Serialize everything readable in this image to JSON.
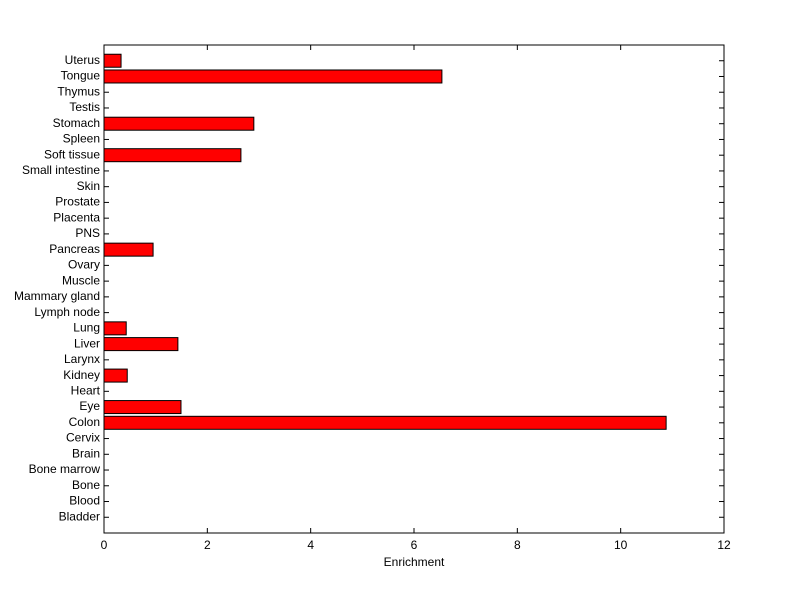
{
  "chart_data": {
    "type": "barh",
    "xlabel": "Enrichment",
    "categories": [
      "Bladder",
      "Blood",
      "Bone",
      "Bone marrow",
      "Brain",
      "Cervix",
      "Colon",
      "Eye",
      "Heart",
      "Kidney",
      "Larynx",
      "Liver",
      "Lung",
      "Lymph node",
      "Mammary gland",
      "Muscle",
      "Ovary",
      "Pancreas",
      "PNS",
      "Placenta",
      "Prostate",
      "Skin",
      "Small intestine",
      "Soft tissue",
      "Spleen",
      "Stomach",
      "Testis",
      "Thymus",
      "Tongue",
      "Uterus"
    ],
    "values": [
      0,
      0,
      0,
      0,
      0,
      0,
      10.88,
      1.49,
      0,
      0.45,
      0,
      1.43,
      0.43,
      0,
      0,
      0,
      0,
      0.95,
      0,
      0,
      0,
      0,
      0,
      2.65,
      0,
      2.9,
      0,
      0,
      6.54,
      0.33
    ],
    "color": "#ff0000",
    "xlim": [
      0,
      12
    ],
    "xticks": [
      0,
      2,
      4,
      6,
      8,
      10,
      12
    ]
  }
}
